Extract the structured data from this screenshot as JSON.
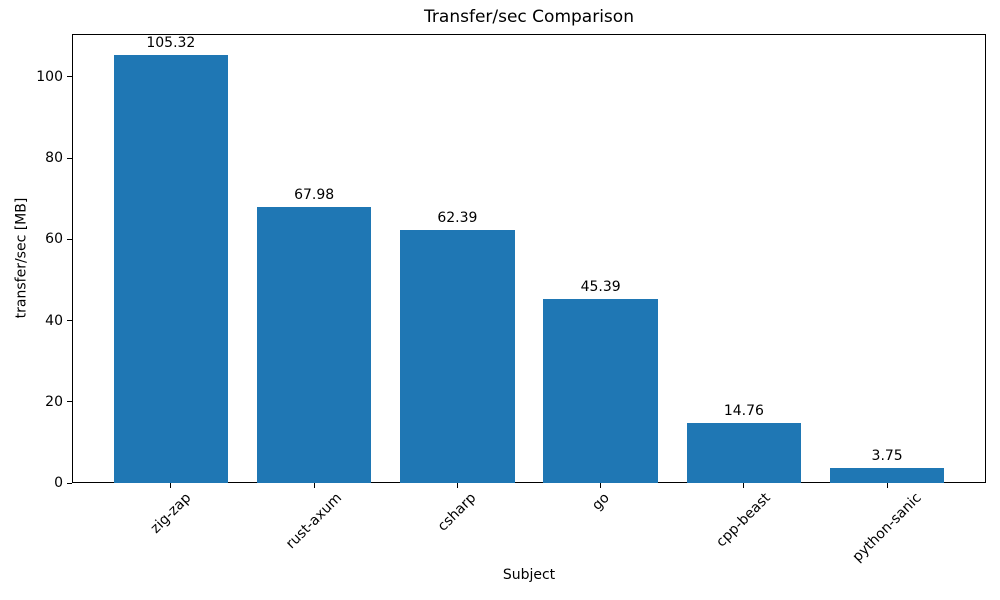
{
  "chart_data": {
    "type": "bar",
    "title": "Transfer/sec Comparison",
    "xlabel": "Subject",
    "ylabel": "transfer/sec [MB]",
    "categories": [
      "zig-zap",
      "rust-axum",
      "csharp",
      "go",
      "cpp-beast",
      "python-sanic"
    ],
    "values": [
      105.32,
      67.98,
      62.39,
      45.39,
      14.76,
      3.75
    ],
    "bar_value_labels": [
      "105.32",
      "67.98",
      "62.39",
      "45.39",
      "14.76",
      "3.75"
    ],
    "yticks": [
      0,
      20,
      40,
      60,
      80,
      100
    ],
    "ytick_labels": [
      "0",
      "20",
      "40",
      "60",
      "80",
      "100"
    ],
    "ylim": [
      0,
      110.59
    ],
    "xlim": [
      -0.69,
      5.69
    ],
    "bar_width": 0.8,
    "bar_color": "#1f77b4",
    "spine_color": "#000000",
    "text_color": "#000000",
    "grid": false,
    "legend": null,
    "x_tick_label_rotation_deg": 45
  }
}
